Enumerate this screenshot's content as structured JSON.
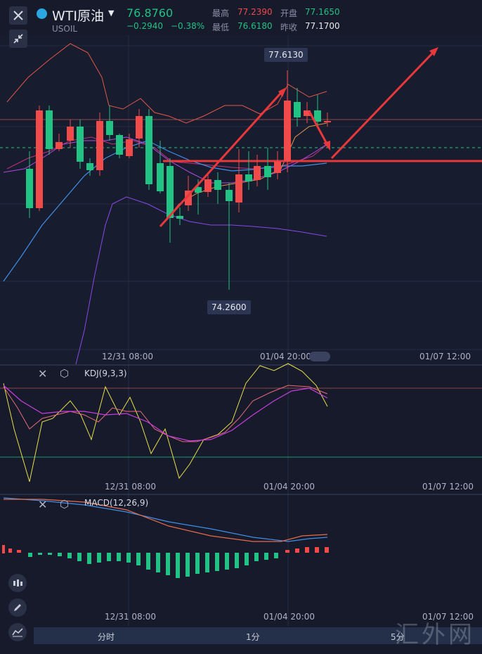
{
  "header": {
    "symbol": "WTI原油",
    "code": "USOIL",
    "last_price": "76.8760",
    "change": "−0.2940",
    "change_pct": "−0.38%",
    "high_label": "最高",
    "high_value": "77.2390",
    "low_label": "最低",
    "low_value": "76.6180",
    "open_label": "开盘",
    "open_value": "77.1650",
    "prev_close_label": "昨收",
    "prev_close_value": "77.1700"
  },
  "main_chart": {
    "high_callout": "77.6130",
    "low_callout": "74.2600",
    "x_ticks": [
      "12/31 08:00",
      "01/04 20:00",
      "01/07 12:00"
    ]
  },
  "kdj": {
    "label": "KDJ(9,3,3)",
    "x_ticks": [
      "12/31 08:00",
      "01/04 20:00",
      "01/07 12:00"
    ]
  },
  "macd": {
    "label": "MACD(12,26,9)",
    "x_ticks": [
      "12/31 08:00",
      "01/04 20:00",
      "01/07 12:00"
    ]
  },
  "timeframes": [
    "分时",
    "1分",
    "5分"
  ],
  "watermark": "汇外网",
  "colors": {
    "up": "#f04a4a",
    "down": "#22c184",
    "bg": "#161a2b",
    "annotation": "#e8383b"
  },
  "chart_data": {
    "type": "candlestick",
    "annotations": [
      "high 77.6130",
      "low 74.2600"
    ]
  }
}
